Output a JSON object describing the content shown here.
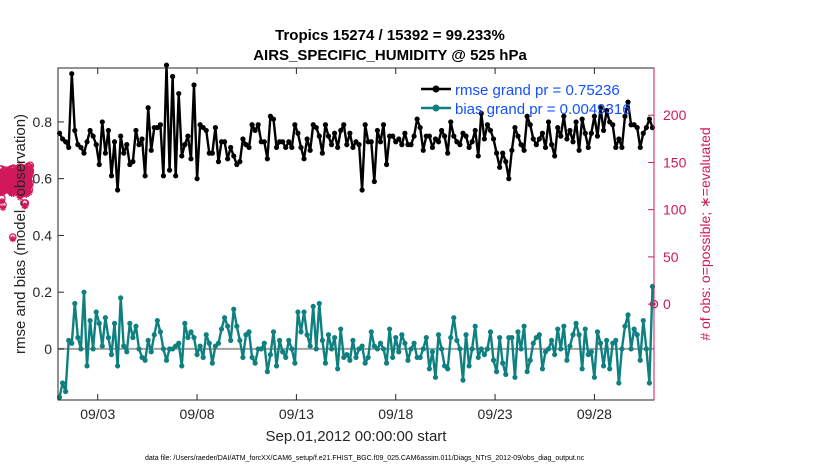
{
  "chart_data": {
    "type": "line",
    "title_line1": "Tropics 15274 / 15392 = 99.233%",
    "title_line2": "AIRS_SPECIFIC_HUMIDITY @ 525 hPa",
    "xlabel": "Sep.01,2012 00:00:00 start",
    "ylabel_left": "rmse and bias (model - observation)",
    "ylabel_right": "# of obs: o=possible; ∗=evaluated",
    "xlim": [
      0.5,
      30.5
    ],
    "ylim_left": [
      -0.18,
      0.99
    ],
    "ylim_right": [
      -101.5,
      250
    ],
    "x_ticks": [
      {
        "value": 2.5,
        "label": "09/03"
      },
      {
        "value": 7.5,
        "label": "09/08"
      },
      {
        "value": 12.5,
        "label": "09/13"
      },
      {
        "value": 17.5,
        "label": "09/18"
      },
      {
        "value": 22.5,
        "label": "09/23"
      },
      {
        "value": 27.5,
        "label": "09/28"
      }
    ],
    "y_ticks_left": [
      {
        "value": 0,
        "label": "0"
      },
      {
        "value": 0.2,
        "label": "0.2"
      },
      {
        "value": 0.4,
        "label": "0.4"
      },
      {
        "value": 0.6,
        "label": "0.6"
      },
      {
        "value": 0.8,
        "label": "0.8"
      }
    ],
    "y_ticks_right": [
      {
        "value": 0,
        "label": "0"
      },
      {
        "value": 50,
        "label": "50"
      },
      {
        "value": 100,
        "label": "100"
      },
      {
        "value": 150,
        "label": "150"
      },
      {
        "value": 200,
        "label": "200"
      }
    ],
    "legend": {
      "position": "top-right",
      "entries": [
        "rmse grand pr = 0.75236",
        "bias grand pr = 0.0049316"
      ]
    },
    "footnote": "data file: /Users/raeder/DAI/ATM_forcXX/CAM6_setup/f.e21.FHIST_BGC.f09_025.CAM6assim.011/Diags_NTrS_2012-09/obs_diag_output.nc",
    "colors": {
      "rmse": "#000000",
      "bias": "#0f8080",
      "obs": "#d1195a",
      "zero_line": "#a0a0a0",
      "axes": "#262626"
    },
    "rmse": [
      0.76,
      0.74,
      0.73,
      0.71,
      0.97,
      0.77,
      0.72,
      0.71,
      0.69,
      0.73,
      0.77,
      0.75,
      0.72,
      0.65,
      0.8,
      0.69,
      0.77,
      0.61,
      0.73,
      0.56,
      0.75,
      0.69,
      0.72,
      0.65,
      0.66,
      0.77,
      0.72,
      0.74,
      0.61,
      0.85,
      0.7,
      0.78,
      0.78,
      0.79,
      0.61,
      1.0,
      0.63,
      0.96,
      0.61,
      0.9,
      0.68,
      0.72,
      0.75,
      0.67,
      0.93,
      0.6,
      0.79,
      0.78,
      0.77,
      0.69,
      0.69,
      0.78,
      0.66,
      0.73,
      0.73,
      0.67,
      0.71,
      0.68,
      0.65,
      0.66,
      0.74,
      0.72,
      0.71,
      0.79,
      0.77,
      0.79,
      0.73,
      0.73,
      0.67,
      0.82,
      0.81,
      0.71,
      0.73,
      0.73,
      0.71,
      0.73,
      0.71,
      0.79,
      0.76,
      0.71,
      0.67,
      0.74,
      0.7,
      0.79,
      0.78,
      0.75,
      0.69,
      0.79,
      0.75,
      0.72,
      0.76,
      0.71,
      0.77,
      0.79,
      0.72,
      0.76,
      0.71,
      0.73,
      0.72,
      0.56,
      0.79,
      0.73,
      0.73,
      0.59,
      0.77,
      0.73,
      0.79,
      0.65,
      0.75,
      0.75,
      0.73,
      0.74,
      0.72,
      0.76,
      0.72,
      0.72,
      0.75,
      0.81,
      0.78,
      0.7,
      0.75,
      0.75,
      0.71,
      0.74,
      0.73,
      0.77,
      0.75,
      0.69,
      0.8,
      0.75,
      0.73,
      0.72,
      0.76,
      0.75,
      0.71,
      0.73,
      0.77,
      0.68,
      0.83,
      0.74,
      0.79,
      0.77,
      0.74,
      0.69,
      0.64,
      0.69,
      0.66,
      0.6,
      0.7,
      0.78,
      0.75,
      0.72,
      0.7,
      0.82,
      0.79,
      0.74,
      0.72,
      0.74,
      0.76,
      0.71,
      0.8,
      0.72,
      0.68,
      0.78,
      0.75,
      0.82,
      0.74,
      0.77,
      0.73,
      0.8,
      0.7,
      0.81,
      0.76,
      0.71,
      0.76,
      0.82,
      0.75,
      0.85,
      0.77,
      0.84,
      0.8,
      0.79,
      0.71,
      0.74,
      0.71,
      0.82,
      0.87,
      0.79,
      0.79,
      0.78,
      0.71,
      0.76,
      0.78,
      0.81,
      0.78
    ],
    "bias": [
      -0.17,
      -0.12,
      -0.15,
      0.03,
      0.02,
      0.16,
      0.04,
      0.0,
      0.2,
      -0.06,
      0.1,
      0.0,
      0.13,
      0.09,
      0.01,
      0.11,
      0.04,
      -0.02,
      0.09,
      -0.06,
      0.18,
      0.01,
      -0.01,
      0.09,
      0.04,
      0.08,
      0.0,
      -0.03,
      -0.04,
      0.03,
      -0.01,
      0.05,
      0.1,
      0.06,
      0.0,
      -0.04,
      0.0,
      0.0,
      0.01,
      0.02,
      -0.06,
      0.09,
      0.04,
      0.06,
      0.04,
      -0.02,
      0.01,
      -0.03,
      0.05,
      0.02,
      -0.05,
      0.01,
      0.02,
      0.07,
      0.11,
      0.08,
      0.03,
      0.14,
      0.08,
      0.03,
      -0.03,
      0.05,
      0.06,
      -0.03,
      -0.05,
      0.0,
      0.0,
      0.02,
      -0.08,
      -0.02,
      0.06,
      -0.06,
      0.03,
      -0.01,
      -0.03,
      0.03,
      0.0,
      -0.05,
      0.13,
      0.06,
      0.13,
      0.05,
      0.01,
      0.15,
      0.0,
      0.16,
      0.03,
      -0.05,
      0.05,
      0.0,
      0.04,
      -0.07,
      0.07,
      -0.03,
      -0.02,
      -0.04,
      0.03,
      -0.03,
      0.0,
      0.01,
      -0.05,
      -0.03,
      0.06,
      0.01,
      0.0,
      0.02,
      0.0,
      -0.05,
      0.07,
      -0.03,
      0.04,
      -0.01,
      0.05,
      0.02,
      -0.04,
      0.0,
      0.02,
      -0.03,
      -0.03,
      0.0,
      0.04,
      -0.07,
      -0.01,
      -0.1,
      0.05,
      0.0,
      -0.06,
      -0.07,
      0.04,
      0.11,
      0.03,
      0.0,
      -0.11,
      0.05,
      -0.06,
      0.0,
      0.08,
      -0.03,
      0.0,
      -0.02,
      0.0,
      0.06,
      -0.04,
      -0.08,
      0.04,
      -0.05,
      -0.09,
      0.04,
      0.04,
      -0.1,
      0.06,
      0.0,
      0.08,
      -0.08,
      -0.04,
      0.02,
      0.04,
      0.05,
      -0.07,
      -0.01,
      0.0,
      0.03,
      -0.02,
      0.07,
      0.0,
      0.08,
      -0.04,
      0.01,
      0.05,
      0.09,
      0.05,
      -0.07,
      0.07,
      -0.02,
      -0.01,
      -0.1,
      0.06,
      0.02,
      -0.06,
      0.03,
      -0.07,
      0.02,
      0.03,
      -0.12,
      0.0,
      0.08,
      0.12,
      0.0,
      0.07,
      0.05,
      -0.04,
      0.1,
      0.0,
      -0.12,
      0.22
    ],
    "obs_possible": [
      143,
      122,
      134,
      126,
      120,
      131,
      143,
      126,
      112,
      134,
      132,
      137,
      125,
      121,
      128,
      105,
      123,
      131,
      123,
      133,
      126,
      133,
      130,
      142,
      125,
      138,
      134,
      133,
      142,
      127,
      123,
      140,
      135,
      129,
      123,
      139,
      128,
      126,
      136,
      128,
      134,
      133,
      140,
      126,
      126,
      135,
      141,
      125,
      132,
      129,
      134,
      135,
      142,
      138,
      141,
      140,
      126,
      137,
      129,
      134,
      122,
      136,
      125,
      132,
      128,
      143,
      121,
      133,
      127,
      120,
      136,
      140,
      135,
      129,
      140,
      128,
      137,
      71,
      124,
      131,
      136,
      144,
      120,
      130,
      126,
      135,
      143,
      137,
      136,
      129,
      131,
      127,
      141,
      140,
      126,
      131,
      136,
      137,
      128,
      140,
      137,
      137,
      132,
      128,
      125,
      136,
      130,
      141,
      143,
      120,
      134,
      131,
      134,
      131,
      142,
      126,
      141,
      131,
      125,
      145,
      130,
      125,
      138,
      116,
      141,
      136,
      145,
      132,
      131,
      145,
      121,
      119,
      131,
      143,
      144,
      128,
      135,
      138,
      128,
      137,
      129,
      128,
      140,
      135,
      137,
      142,
      130,
      128,
      135,
      135,
      107,
      142,
      126,
      135,
      121,
      140,
      107,
      133,
      140,
      120,
      144,
      127,
      119,
      134,
      133,
      124,
      140,
      126,
      138,
      123,
      142,
      139,
      127,
      128,
      146,
      135,
      129,
      135,
      139,
      126,
      145,
      121,
      138,
      143,
      145,
      139,
      128,
      147,
      141
    ],
    "obs_evaluated": [
      140,
      119,
      131,
      123,
      118,
      128,
      140,
      123,
      109,
      131,
      129,
      134,
      122,
      118,
      125,
      102,
      120,
      128,
      120,
      130,
      123,
      130,
      127,
      139,
      122,
      135,
      131,
      130,
      139,
      124,
      120,
      137,
      132,
      126,
      120,
      136,
      125,
      123,
      133,
      125,
      131,
      130,
      137,
      123,
      123,
      132,
      138,
      122,
      129,
      126,
      131,
      132,
      139,
      135,
      138,
      137,
      123,
      134,
      126,
      131,
      119,
      133,
      122,
      129,
      125,
      140,
      118,
      130,
      124,
      117,
      133,
      137,
      132,
      126,
      137,
      125,
      134,
      69,
      121,
      128,
      133,
      141,
      117,
      127,
      123,
      132,
      140,
      134,
      133,
      126,
      128,
      124,
      138,
      137,
      123,
      128,
      133,
      134,
      125,
      137,
      134,
      134,
      129,
      125,
      122,
      133,
      127,
      138,
      140,
      117,
      131,
      128,
      131,
      128,
      139,
      123,
      138,
      128,
      122,
      142,
      127,
      122,
      135,
      113,
      138,
      133,
      142,
      129,
      128,
      142,
      118,
      116,
      128,
      140,
      141,
      125,
      132,
      135,
      125,
      134,
      126,
      125,
      137,
      132,
      134,
      139,
      127,
      125,
      132,
      132,
      104,
      139,
      123,
      132,
      118,
      137,
      104,
      130,
      137,
      117,
      141,
      124,
      116,
      131,
      130,
      121,
      137,
      123,
      135,
      120,
      139,
      136,
      124,
      125,
      143,
      132,
      126,
      132,
      136,
      123,
      142,
      118,
      135,
      140,
      142,
      136,
      125,
      144,
      138
    ]
  }
}
